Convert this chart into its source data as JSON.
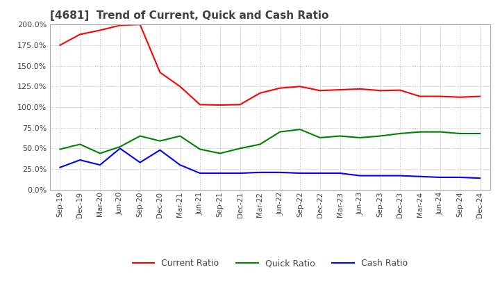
{
  "title": "[4681]  Trend of Current, Quick and Cash Ratio",
  "x_labels": [
    "Sep-19",
    "Dec-19",
    "Mar-20",
    "Jun-20",
    "Sep-20",
    "Dec-20",
    "Mar-21",
    "Jun-21",
    "Sep-21",
    "Dec-21",
    "Mar-22",
    "Jun-22",
    "Sep-22",
    "Dec-22",
    "Mar-23",
    "Jun-23",
    "Sep-23",
    "Dec-23",
    "Mar-24",
    "Jun-24",
    "Sep-24",
    "Dec-24"
  ],
  "current_ratio": [
    175.0,
    188.0,
    193.0,
    199.0,
    200.0,
    142.0,
    125.0,
    103.0,
    102.5,
    103.0,
    117.0,
    123.0,
    125.0,
    120.0,
    121.0,
    122.0,
    120.0,
    120.5,
    113.0,
    113.0,
    112.0,
    113.0
  ],
  "quick_ratio": [
    49.0,
    55.0,
    44.0,
    52.0,
    65.0,
    59.0,
    65.0,
    49.0,
    44.0,
    50.0,
    55.0,
    70.0,
    73.0,
    63.0,
    65.0,
    63.0,
    65.0,
    68.0,
    70.0,
    70.0,
    68.0,
    68.0
  ],
  "cash_ratio": [
    27.0,
    36.0,
    30.0,
    50.0,
    33.0,
    48.0,
    30.0,
    20.0,
    20.0,
    20.0,
    21.0,
    21.0,
    20.0,
    20.0,
    20.0,
    17.0,
    17.0,
    17.0,
    16.0,
    15.0,
    15.0,
    14.0
  ],
  "current_color": "#ff0000",
  "quick_color": "#008000",
  "cash_color": "#0000ff",
  "bg_color": "#ffffff",
  "grid_color": "#bbbbbb",
  "ylim": [
    0,
    200
  ],
  "yticks": [
    0,
    25,
    50,
    75,
    100,
    125,
    150,
    175,
    200
  ]
}
